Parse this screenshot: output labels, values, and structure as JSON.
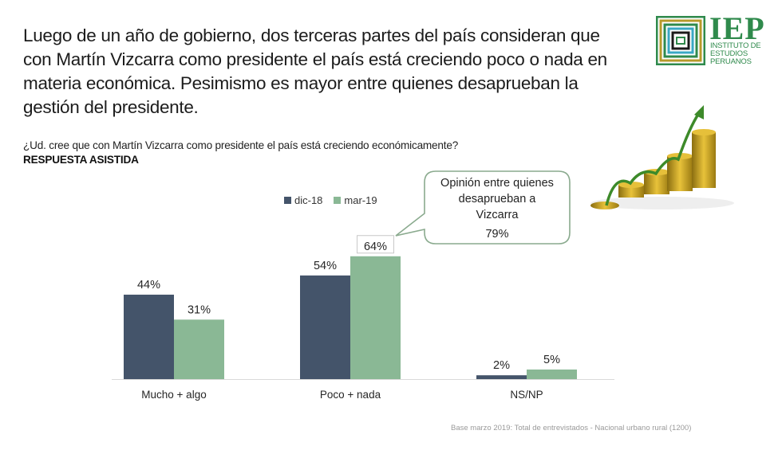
{
  "headline": [
    "Luego de un año de gobierno, dos terceras partes del país consideran que",
    "con Martín Vizcarra como presidente el país está creciendo poco o nada en",
    "materia económica. Pesimismo es mayor entre quienes desaprueban la",
    "gestión del presidente."
  ],
  "question": "¿Ud. cree que con Martín Vizcarra como presidente el país está creciendo económicamente?",
  "question_type": "RESPUESTA ASISTIDA",
  "logo": {
    "title": "IEP",
    "subtitle": [
      "INSTITUTO DE",
      "ESTUDIOS",
      "PERUANOS"
    ],
    "icon": "iep-concentric-squares-logo-icon"
  },
  "illustration": {
    "icon": "rising-coin-stacks-arrow-icon"
  },
  "callout": {
    "lines": [
      "Opinión entre quienes",
      "desaprueban a",
      "Vizcarra"
    ],
    "value": "79%",
    "points_to": "Poco + nada / mar-19"
  },
  "footnote": "Base marzo 2019: Total de entrevistados - Nacional urbano rural (1200)",
  "colors": {
    "dic18": "#44546a",
    "mar19": "#8ab895",
    "callout_border": "#8aaa8e",
    "logo_green": "#2f8a4c"
  },
  "chart_data": {
    "type": "bar",
    "title": "¿Ud. cree que con Martín Vizcarra como presidente el país está creciendo económicamente?",
    "xlabel": "",
    "ylabel": "",
    "ylim": [
      0,
      70
    ],
    "grid": false,
    "legend_position": "top-center",
    "categories": [
      "Mucho + algo",
      "Poco + nada",
      "NS/NP"
    ],
    "series": [
      {
        "name": "dic-18",
        "color": "#44546a",
        "values": [
          44,
          54,
          2
        ],
        "labels": [
          "44%",
          "54%",
          "2%"
        ]
      },
      {
        "name": "mar-19",
        "color": "#8ab895",
        "values": [
          31,
          64,
          5
        ],
        "labels": [
          "31%",
          "64%",
          "5%"
        ]
      }
    ],
    "highlighted_label": {
      "series": "mar-19",
      "category": "Poco + nada",
      "boxed": true
    }
  }
}
